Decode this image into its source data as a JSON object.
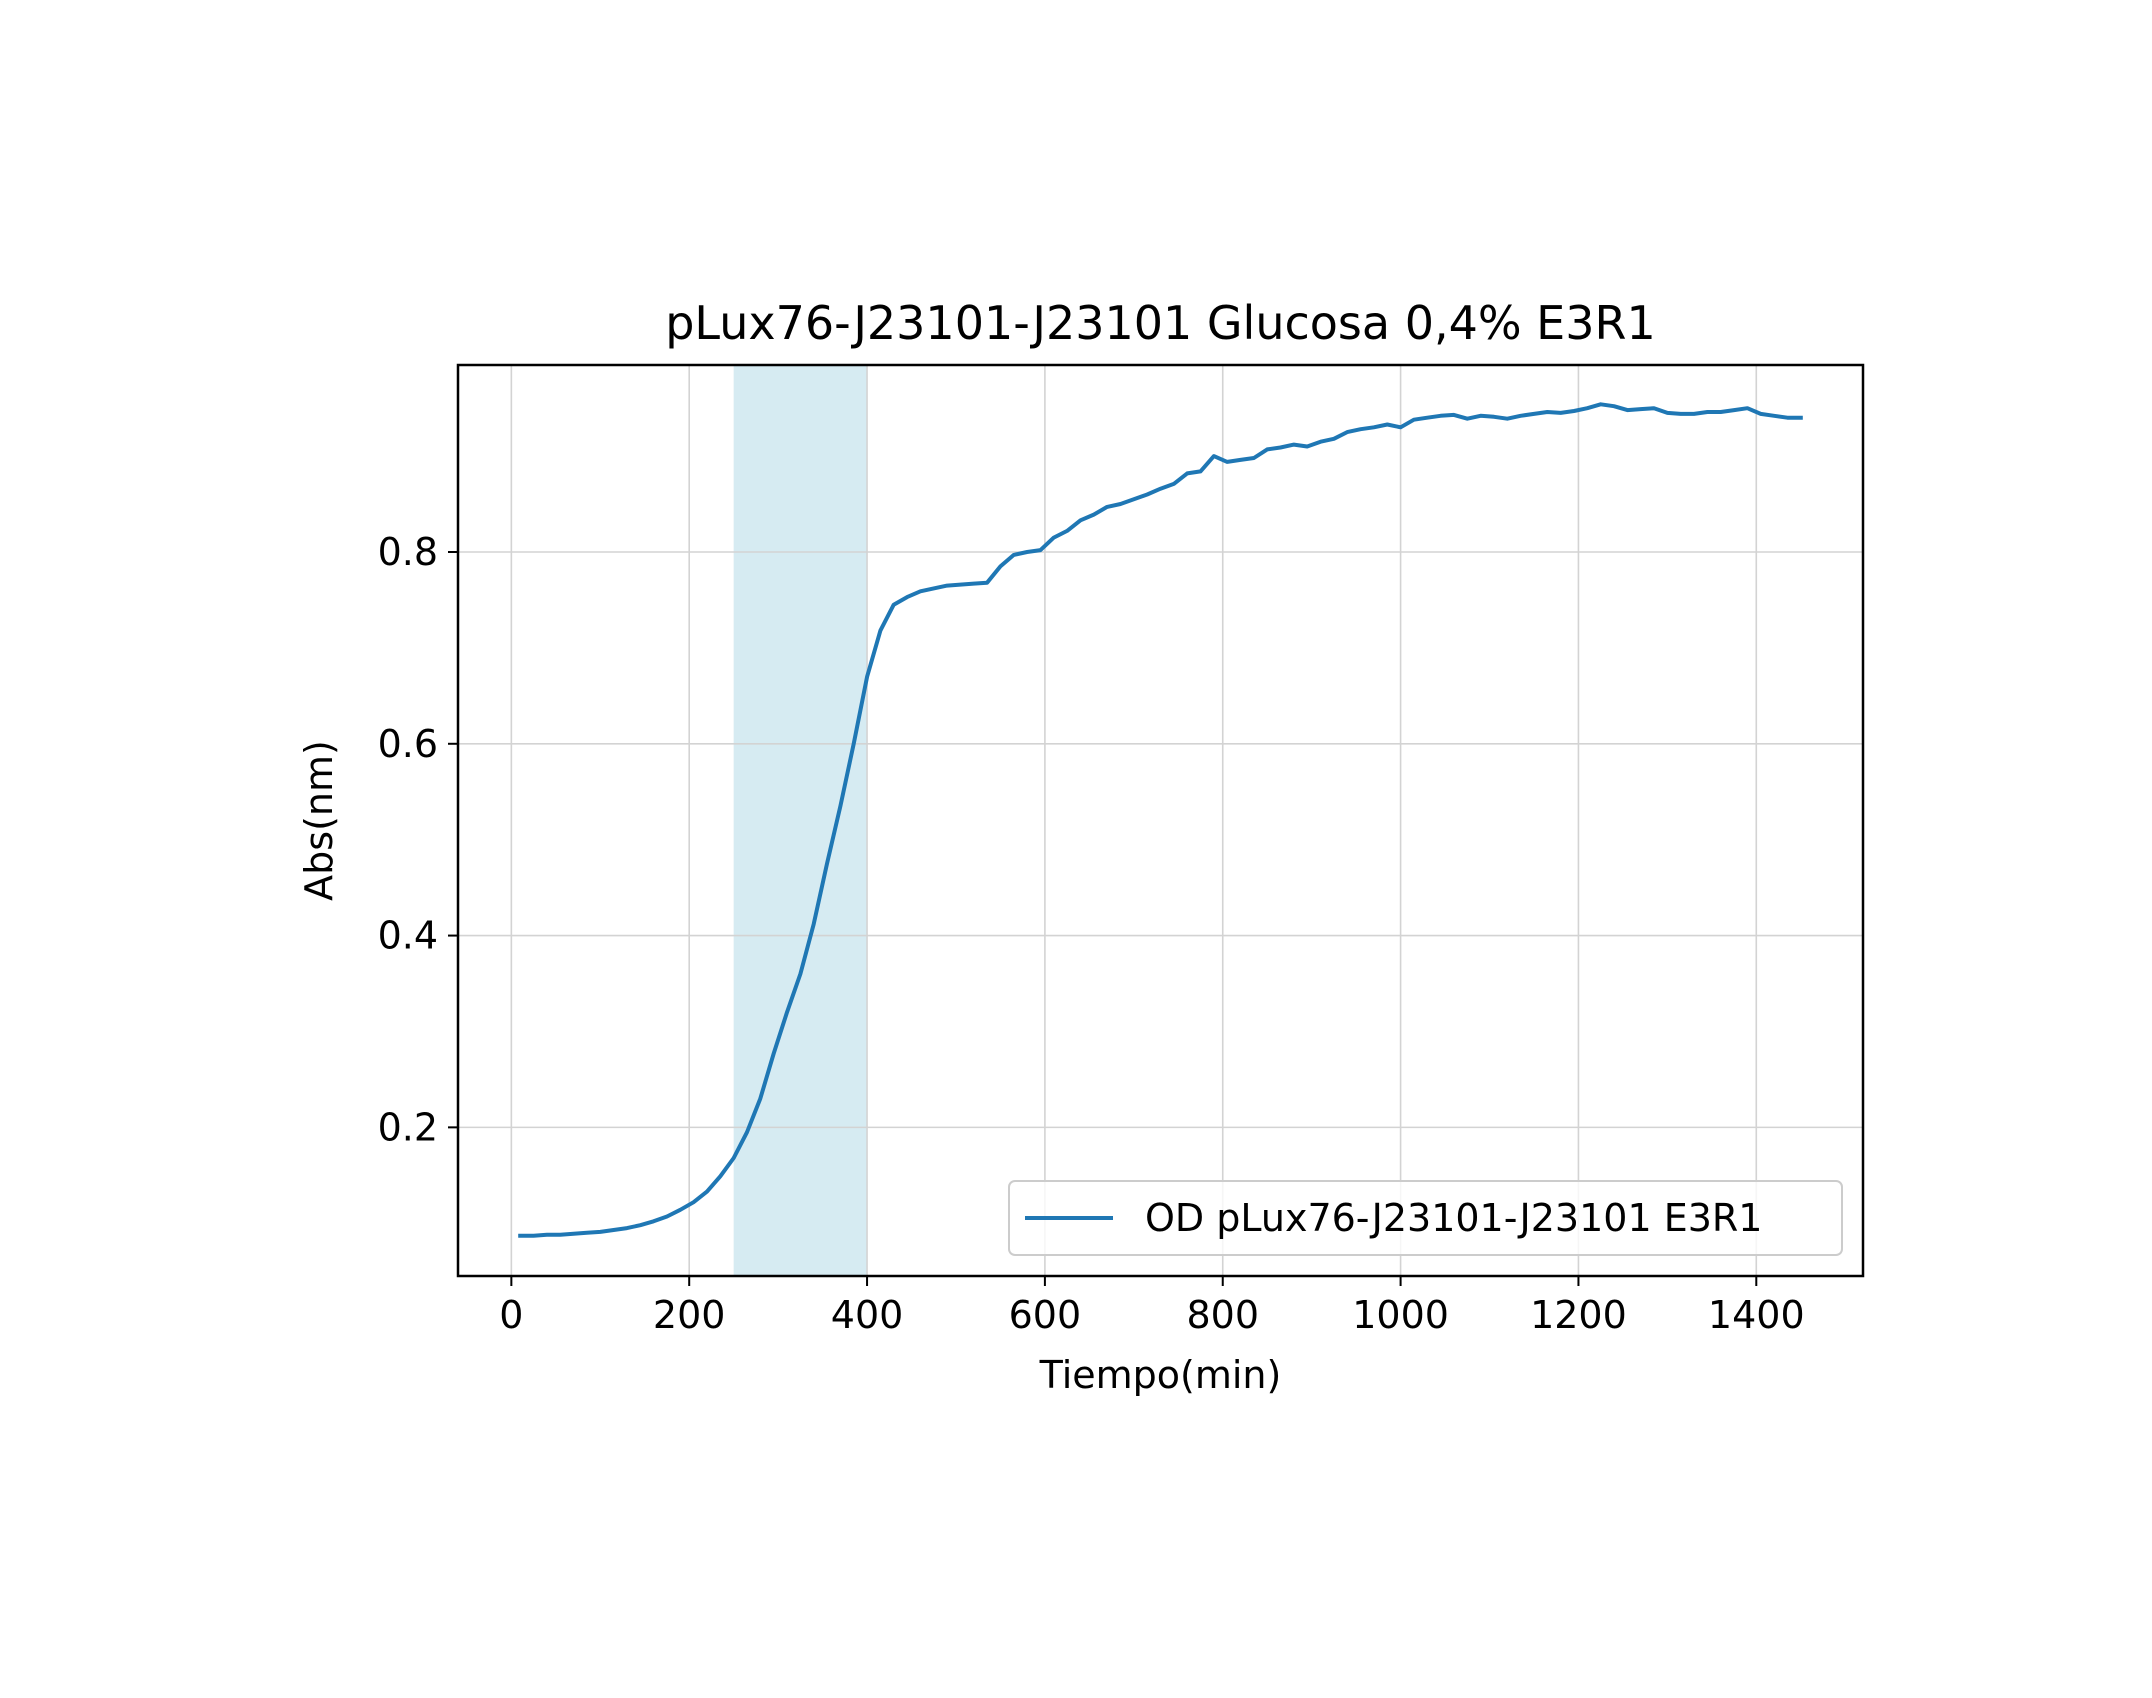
{
  "chart_data": {
    "type": "line",
    "title": "pLux76-J23101-J23101 Glucosa 0,4% E3R1",
    "xlabel": "Tiempo(min)",
    "ylabel": "Abs(nm)",
    "xlim": [
      -60,
      1520
    ],
    "ylim": [
      0.045,
      0.995
    ],
    "xticks": [
      0,
      200,
      400,
      600,
      800,
      1000,
      1200,
      1400
    ],
    "yticks": [
      0.2,
      0.4,
      0.6,
      0.8
    ],
    "xtick_labels": [
      "0",
      "200",
      "400",
      "600",
      "800",
      "1000",
      "1200",
      "1400"
    ],
    "ytick_labels": [
      "0.2",
      "0.4",
      "0.6",
      "0.8"
    ],
    "grid": true,
    "legend_position": "lower-right",
    "highlight_span": {
      "x_start": 250,
      "x_end": 400,
      "color": "#add8e6"
    },
    "series": [
      {
        "name": "OD pLux76-J23101-J23101 E3R1",
        "color": "#1f77b4",
        "x": [
          10,
          25,
          40,
          55,
          70,
          85,
          100,
          115,
          130,
          145,
          160,
          175,
          190,
          205,
          220,
          235,
          250,
          265,
          280,
          295,
          310,
          325,
          340,
          355,
          370,
          385,
          400,
          415,
          430,
          445,
          460,
          475,
          490,
          505,
          520,
          535,
          550,
          565,
          580,
          595,
          610,
          625,
          640,
          655,
          670,
          685,
          700,
          715,
          730,
          745,
          760,
          775,
          790,
          805,
          820,
          835,
          850,
          865,
          880,
          895,
          910,
          925,
          940,
          955,
          970,
          985,
          1000,
          1015,
          1030,
          1045,
          1060,
          1075,
          1090,
          1105,
          1120,
          1135,
          1150,
          1165,
          1180,
          1195,
          1210,
          1225,
          1240,
          1255,
          1270,
          1285,
          1300,
          1315,
          1330,
          1345,
          1360,
          1375,
          1390,
          1405,
          1420,
          1435,
          1450
        ],
        "y": [
          0.087,
          0.087,
          0.088,
          0.088,
          0.089,
          0.09,
          0.091,
          0.093,
          0.095,
          0.098,
          0.102,
          0.107,
          0.114,
          0.122,
          0.133,
          0.149,
          0.168,
          0.195,
          0.23,
          0.277,
          0.32,
          0.36,
          0.412,
          0.475,
          0.535,
          0.6,
          0.67,
          0.718,
          0.745,
          0.753,
          0.759,
          0.762,
          0.765,
          0.766,
          0.767,
          0.768,
          0.785,
          0.797,
          0.8,
          0.802,
          0.815,
          0.822,
          0.833,
          0.839,
          0.847,
          0.85,
          0.855,
          0.86,
          0.866,
          0.871,
          0.882,
          0.884,
          0.9,
          0.894,
          0.896,
          0.898,
          0.907,
          0.909,
          0.912,
          0.91,
          0.915,
          0.918,
          0.925,
          0.928,
          0.93,
          0.933,
          0.93,
          0.938,
          0.94,
          0.942,
          0.943,
          0.939,
          0.942,
          0.941,
          0.939,
          0.942,
          0.944,
          0.946,
          0.945,
          0.947,
          0.95,
          0.954,
          0.952,
          0.948,
          0.949,
          0.95,
          0.945,
          0.944,
          0.944,
          0.946,
          0.946,
          0.948,
          0.95,
          0.944,
          0.942,
          0.94,
          0.94
        ]
      }
    ]
  }
}
